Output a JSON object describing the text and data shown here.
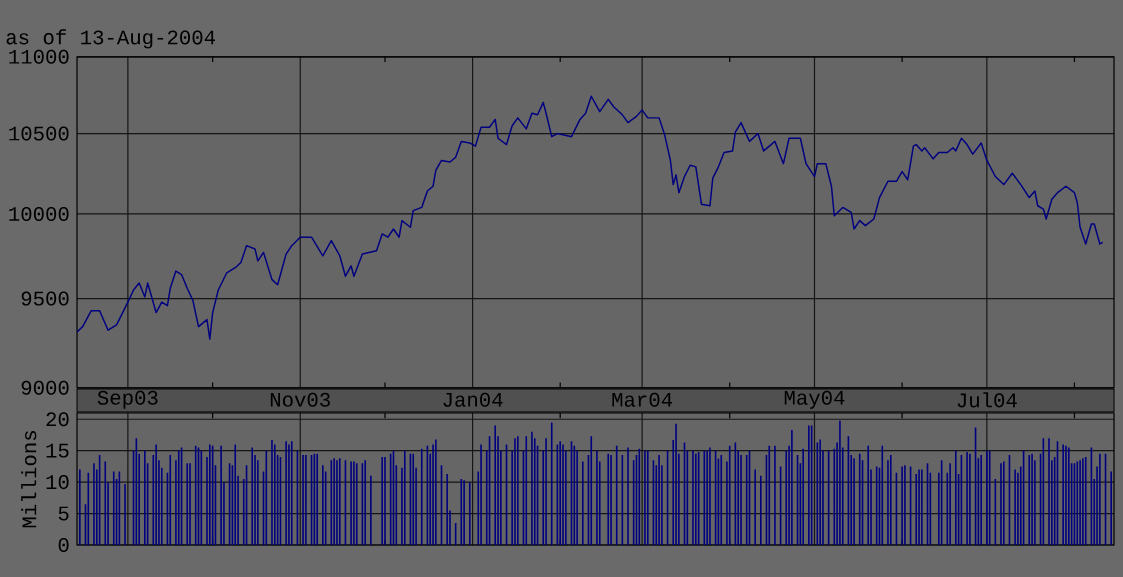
{
  "chart_data": [
    {
      "type": "line",
      "subtitle": "as of 13-Aug-2004",
      "color": "#000080",
      "xlim": [
        "2003-08-14",
        "2004-08-15"
      ],
      "ylim": [
        9000,
        11000
      ],
      "log": "y",
      "grid": true,
      "yticks": [
        9000,
        9500,
        10000,
        10500,
        11000
      ],
      "xticks": [
        {
          "value": "2003-09-01",
          "label": "Sep03"
        },
        {
          "value": "2003-10-01",
          "label": null
        },
        {
          "value": "2003-11-01",
          "label": "Nov03"
        },
        {
          "value": "2003-12-01",
          "label": null
        },
        {
          "value": "2004-01-01",
          "label": "Jan04"
        },
        {
          "value": "2004-02-01",
          "label": null
        },
        {
          "value": "2004-03-01",
          "label": "Mar04"
        },
        {
          "value": "2004-04-01",
          "label": null
        },
        {
          "value": "2004-05-01",
          "label": "May04"
        },
        {
          "value": "2004-06-01",
          "label": null
        },
        {
          "value": "2004-07-01",
          "label": "Jul04"
        },
        {
          "value": "2004-08-01",
          "label": null
        }
      ],
      "x": [
        "2003-08-14",
        "2003-08-16",
        "2003-08-19",
        "2003-08-22",
        "2003-08-25",
        "2003-08-28",
        "2003-09-01",
        "2003-09-03",
        "2003-09-05",
        "2003-09-07",
        "2003-09-08",
        "2003-09-11",
        "2003-09-13",
        "2003-09-15",
        "2003-09-16",
        "2003-09-18",
        "2003-09-20",
        "2003-09-22",
        "2003-09-24",
        "2003-09-26",
        "2003-09-29",
        "2003-09-30",
        "2003-10-01",
        "2003-10-03",
        "2003-10-06",
        "2003-10-09",
        "2003-10-11",
        "2003-10-13",
        "2003-10-16",
        "2003-10-17",
        "2003-10-19",
        "2003-10-22",
        "2003-10-24",
        "2003-10-27",
        "2003-10-29",
        "2003-11-01",
        "2003-11-05",
        "2003-11-09",
        "2003-11-12",
        "2003-11-15",
        "2003-11-17",
        "2003-11-19",
        "2003-11-20",
        "2003-11-23",
        "2003-11-28",
        "2003-11-30",
        "2003-12-02",
        "2003-12-04",
        "2003-12-06",
        "2003-12-07",
        "2003-12-10",
        "2003-12-11",
        "2003-12-14",
        "2003-12-16",
        "2003-12-18",
        "2003-12-19",
        "2003-12-21",
        "2003-12-24",
        "2003-12-26",
        "2003-12-28",
        "2003-12-31",
        "2004-01-02",
        "2004-01-04",
        "2004-01-07",
        "2004-01-09",
        "2004-01-10",
        "2004-01-13",
        "2004-01-15",
        "2004-01-17",
        "2004-01-20",
        "2004-01-22",
        "2004-01-24",
        "2004-01-26",
        "2004-01-27",
        "2004-01-29",
        "2004-01-31",
        "2004-02-05",
        "2004-02-08",
        "2004-02-10",
        "2004-02-12",
        "2004-02-15",
        "2004-02-18",
        "2004-02-20",
        "2004-02-23",
        "2004-02-25",
        "2004-02-28",
        "2004-03-01",
        "2004-03-03",
        "2004-03-07",
        "2004-03-09",
        "2004-03-11",
        "2004-03-12",
        "2004-03-13",
        "2004-03-14",
        "2004-03-16",
        "2004-03-18",
        "2004-03-20",
        "2004-03-22",
        "2004-03-25",
        "2004-03-26",
        "2004-03-28",
        "2004-03-30",
        "2004-04-02",
        "2004-04-03",
        "2004-04-05",
        "2004-04-08",
        "2004-04-11",
        "2004-04-13",
        "2004-04-17",
        "2004-04-20",
        "2004-04-22",
        "2004-04-26",
        "2004-04-28",
        "2004-05-01",
        "2004-05-02",
        "2004-05-05",
        "2004-05-07",
        "2004-05-08",
        "2004-05-11",
        "2004-05-14",
        "2004-05-15",
        "2004-05-17",
        "2004-05-19",
        "2004-05-22",
        "2004-05-24",
        "2004-05-27",
        "2004-05-30",
        "2004-06-01",
        "2004-06-03",
        "2004-06-05",
        "2004-06-06",
        "2004-06-08",
        "2004-06-09",
        "2004-06-12",
        "2004-06-14",
        "2004-06-17",
        "2004-06-19",
        "2004-06-20",
        "2004-06-22",
        "2004-06-24",
        "2004-06-26",
        "2004-06-29",
        "2004-07-01",
        "2004-07-04",
        "2004-07-07",
        "2004-07-10",
        "2004-07-13",
        "2004-07-16",
        "2004-07-18",
        "2004-07-19",
        "2004-07-21",
        "2004-07-22",
        "2004-07-24",
        "2004-07-26",
        "2004-07-29",
        "2004-08-01",
        "2004-08-02",
        "2004-08-03",
        "2004-08-05",
        "2004-08-07",
        "2004-08-08",
        "2004-08-10",
        "2004-08-11"
      ],
      "values": [
        9310,
        9340,
        9430,
        9430,
        9320,
        9350,
        9480,
        9550,
        9590,
        9510,
        9590,
        9420,
        9480,
        9460,
        9560,
        9660,
        9640,
        9560,
        9490,
        9340,
        9380,
        9270,
        9420,
        9550,
        9650,
        9680,
        9710,
        9810,
        9790,
        9720,
        9770,
        9610,
        9580,
        9760,
        9810,
        9860,
        9860,
        9750,
        9840,
        9750,
        9630,
        9690,
        9630,
        9760,
        9780,
        9880,
        9860,
        9910,
        9860,
        9960,
        9920,
        10020,
        10040,
        10140,
        10170,
        10270,
        10330,
        10320,
        10350,
        10450,
        10440,
        10420,
        10540,
        10540,
        10590,
        10470,
        10430,
        10550,
        10600,
        10530,
        10630,
        10620,
        10700,
        10630,
        10480,
        10500,
        10480,
        10590,
        10630,
        10740,
        10640,
        10720,
        10670,
        10620,
        10570,
        10610,
        10650,
        10600,
        10600,
        10490,
        10330,
        10180,
        10240,
        10130,
        10230,
        10300,
        10290,
        10060,
        10050,
        10220,
        10290,
        10380,
        10390,
        10510,
        10570,
        10450,
        10500,
        10390,
        10450,
        10310,
        10470,
        10470,
        10310,
        10230,
        10310,
        10310,
        10170,
        9990,
        10040,
        10010,
        9910,
        9960,
        9930,
        9970,
        10100,
        10200,
        10200,
        10260,
        10210,
        10420,
        10430,
        10390,
        10410,
        10340,
        10380,
        10380,
        10410,
        10390,
        10470,
        10430,
        10370,
        10440,
        10330,
        10230,
        10180,
        10250,
        10180,
        10100,
        10140,
        10050,
        10030,
        9970,
        10090,
        10130,
        10170,
        10130,
        10070,
        9920,
        9820,
        9940,
        9940,
        9820,
        9830
      ]
    },
    {
      "type": "bar",
      "ylabel": "Millions",
      "color": "#000080",
      "xlim": [
        "2003-08-14",
        "2004-08-15"
      ],
      "ylim": [
        0,
        21
      ],
      "tick_labels": "y",
      "grid": true,
      "yticks": [
        0,
        5,
        10,
        15,
        20
      ],
      "xticks": [
        "2003-09-01",
        {
          "value": "2003-10-01",
          "label": null
        },
        "2003-11-01",
        {
          "value": "2003-12-01",
          "label": null
        },
        "2004-01-01",
        {
          "value": "2004-02-01",
          "label": null
        },
        "2004-03-01",
        {
          "value": "2004-04-01",
          "label": null
        },
        "2004-05-01",
        {
          "value": "2004-06-01",
          "label": null
        },
        "2004-07-01",
        {
          "value": "2004-08-01",
          "label": null
        }
      ],
      "x": [
        "2003-08-15",
        "2003-08-17",
        "2003-08-18",
        "2003-08-20",
        "2003-08-21",
        "2003-08-22",
        "2003-08-24",
        "2003-08-25",
        "2003-08-27",
        "2003-08-28",
        "2003-08-29",
        "2003-08-31",
        "2003-09-03",
        "2003-09-04",
        "2003-09-05",
        "2003-09-07",
        "2003-09-08",
        "2003-09-10",
        "2003-09-11",
        "2003-09-12",
        "2003-09-13",
        "2003-09-15",
        "2003-09-16",
        "2003-09-18",
        "2003-09-19",
        "2003-09-20",
        "2003-09-22",
        "2003-09-23",
        "2003-09-25",
        "2003-09-26",
        "2003-09-27",
        "2003-09-29",
        "2003-09-30",
        "2003-10-01",
        "2003-10-02",
        "2003-10-04",
        "2003-10-05",
        "2003-10-07",
        "2003-10-08",
        "2003-10-09",
        "2003-10-10",
        "2003-10-12",
        "2003-10-13",
        "2003-10-15",
        "2003-10-16",
        "2003-10-17",
        "2003-10-19",
        "2003-10-20",
        "2003-10-22",
        "2003-10-23",
        "2003-10-24",
        "2003-10-25",
        "2003-10-27",
        "2003-10-28",
        "2003-10-29",
        "2003-10-31",
        "2003-11-02",
        "2003-11-03",
        "2003-11-05",
        "2003-11-06",
        "2003-11-07",
        "2003-11-09",
        "2003-11-10",
        "2003-11-12",
        "2003-11-13",
        "2003-11-14",
        "2003-11-15",
        "2003-11-17",
        "2003-11-19",
        "2003-11-20",
        "2003-11-21",
        "2003-11-23",
        "2003-11-24",
        "2003-11-26",
        "2003-11-30",
        "2003-12-01",
        "2003-12-03",
        "2003-12-04",
        "2003-12-05",
        "2003-12-07",
        "2003-12-08",
        "2003-12-10",
        "2003-12-11",
        "2003-12-12",
        "2003-12-14",
        "2003-12-16",
        "2003-12-17",
        "2003-12-18",
        "2003-12-19",
        "2003-12-21",
        "2003-12-23",
        "2003-12-24",
        "2003-12-26",
        "2003-12-28",
        "2003-12-29",
        "2003-12-31",
        "2004-01-03",
        "2004-01-04",
        "2004-01-06",
        "2004-01-07",
        "2004-01-09",
        "2004-01-10",
        "2004-01-11",
        "2004-01-13",
        "2004-01-15",
        "2004-01-16",
        "2004-01-17",
        "2004-01-19",
        "2004-01-20",
        "2004-01-22",
        "2004-01-23",
        "2004-01-24",
        "2004-01-26",
        "2004-01-27",
        "2004-01-29",
        "2004-01-31",
        "2004-02-01",
        "2004-02-02",
        "2004-02-03",
        "2004-02-05",
        "2004-02-06",
        "2004-02-07",
        "2004-02-09",
        "2004-02-11",
        "2004-02-12",
        "2004-02-14",
        "2004-02-15",
        "2004-02-18",
        "2004-02-19",
        "2004-02-21",
        "2004-02-23",
        "2004-02-25",
        "2004-02-27",
        "2004-02-28",
        "2004-02-29",
        "2004-03-02",
        "2004-03-03",
        "2004-03-05",
        "2004-03-06",
        "2004-03-07",
        "2004-03-08",
        "2004-03-10",
        "2004-03-12",
        "2004-03-13",
        "2004-03-14",
        "2004-03-16",
        "2004-03-17",
        "2004-03-19",
        "2004-03-20",
        "2004-03-21",
        "2004-03-23",
        "2004-03-24",
        "2004-03-25",
        "2004-03-27",
        "2004-03-28",
        "2004-03-29",
        "2004-03-31",
        "2004-04-01",
        "2004-04-03",
        "2004-04-04",
        "2004-04-05",
        "2004-04-07",
        "2004-04-08",
        "2004-04-10",
        "2004-04-12",
        "2004-04-14",
        "2004-04-15",
        "2004-04-17",
        "2004-04-19",
        "2004-04-21",
        "2004-04-22",
        "2004-04-23",
        "2004-04-25",
        "2004-04-26",
        "2004-04-27",
        "2004-04-29",
        "2004-04-30",
        "2004-05-02",
        "2004-05-03",
        "2004-05-04",
        "2004-05-06",
        "2004-05-08",
        "2004-05-09",
        "2004-05-10",
        "2004-05-11",
        "2004-05-13",
        "2004-05-14",
        "2004-05-15",
        "2004-05-17",
        "2004-05-18",
        "2004-05-20",
        "2004-05-21",
        "2004-05-23",
        "2004-05-24",
        "2004-05-25",
        "2004-05-27",
        "2004-05-28",
        "2004-05-30",
        "2004-06-01",
        "2004-06-02",
        "2004-06-04",
        "2004-06-06",
        "2004-06-07",
        "2004-06-08",
        "2004-06-10",
        "2004-06-11",
        "2004-06-14",
        "2004-06-15",
        "2004-06-17",
        "2004-06-18",
        "2004-06-20",
        "2004-06-21",
        "2004-06-22",
        "2004-06-24",
        "2004-06-25",
        "2004-06-27",
        "2004-06-28",
        "2004-06-29",
        "2004-07-01",
        "2004-07-02",
        "2004-07-04",
        "2004-07-06",
        "2004-07-07",
        "2004-07-09",
        "2004-07-11",
        "2004-07-12",
        "2004-07-13",
        "2004-07-14",
        "2004-07-16",
        "2004-07-17",
        "2004-07-18",
        "2004-07-20",
        "2004-07-21",
        "2004-07-23",
        "2004-07-24",
        "2004-07-25",
        "2004-07-26",
        "2004-07-28",
        "2004-07-29",
        "2004-07-30",
        "2004-07-31",
        "2004-08-01",
        "2004-08-02",
        "2004-08-03",
        "2004-08-04",
        "2004-08-05",
        "2004-08-07",
        "2004-08-08",
        "2004-08-09",
        "2004-08-10",
        "2004-08-12",
        "2004-08-14"
      ],
      "values": [
        12,
        6.5,
        11.5,
        13,
        12,
        14.3,
        13.3,
        10,
        11.7,
        10.5,
        11.7,
        9.7,
        15,
        17,
        14.5,
        15,
        13,
        14.3,
        16,
        13.5,
        12.3,
        11.5,
        14.3,
        13.5,
        15,
        15.5,
        13,
        13,
        15.8,
        15.5,
        15,
        14,
        16,
        15.8,
        12.7,
        15.8,
        10,
        13,
        12.7,
        16,
        11,
        10.5,
        12.7,
        15.5,
        14.3,
        13.5,
        11.7,
        15,
        16.7,
        16,
        14.3,
        14,
        16.5,
        16,
        16.5,
        15,
        14.3,
        14.3,
        14.3,
        14.5,
        14.5,
        12.7,
        11.7,
        13.5,
        13.8,
        13.5,
        13.8,
        13.5,
        13.3,
        13.3,
        13,
        13,
        13.5,
        11,
        14,
        14,
        14.5,
        15,
        12.7,
        12.3,
        15,
        14.5,
        14.5,
        12.3,
        15.3,
        15.8,
        14.5,
        16,
        16.8,
        12.7,
        11.3,
        5.5,
        3.5,
        10.5,
        10.3,
        10,
        11.7,
        16,
        15,
        17.3,
        19,
        17.3,
        15,
        16,
        15,
        17,
        17.3,
        15,
        17.3,
        18,
        17,
        15.8,
        15,
        17,
        19.5,
        16,
        16.5,
        16,
        15,
        16.5,
        15.8,
        15,
        13.3,
        14.3,
        17.3,
        15,
        13.3,
        14.5,
        14.3,
        15.8,
        14.3,
        15.5,
        13.5,
        14.3,
        15.3,
        15,
        15,
        13.5,
        12.7,
        14.3,
        12.7,
        15,
        16.7,
        19.3,
        14.5,
        16.3,
        15,
        15,
        14.5,
        14.8,
        15,
        15,
        15.5,
        15,
        13.7,
        14.3,
        13.3,
        15.8,
        16.3,
        15,
        14.3,
        14.3,
        15,
        12,
        11,
        14.3,
        15.8,
        15.8,
        12.5,
        15,
        15.8,
        18.3,
        14.3,
        13,
        15.3,
        19,
        19,
        16.3,
        16.8,
        15,
        15,
        15.3,
        16.3,
        19.8,
        15.5,
        17.3,
        14.3,
        13.8,
        14.5,
        13.5,
        15.8,
        12,
        12.5,
        12.3,
        15.8,
        13.5,
        14.3,
        11.5,
        12.5,
        12.7,
        12.5,
        11.3,
        12,
        12,
        13,
        11.5,
        11.5,
        13.5,
        11.5,
        13,
        15,
        11.3,
        14.3,
        14.8,
        14.5,
        18.7,
        13.8,
        14.3,
        15,
        15,
        10.5,
        13,
        13.3,
        14.3,
        12,
        11.5,
        12.5,
        15,
        14.3,
        14.5,
        13.5,
        14.5,
        17,
        17,
        13.5,
        14,
        16.5,
        16,
        15.8,
        15.5,
        13,
        13,
        13.3,
        13.5,
        13.8,
        14,
        15.5,
        10.5,
        12.5,
        14.5,
        14.5,
        11.7
      ]
    }
  ]
}
